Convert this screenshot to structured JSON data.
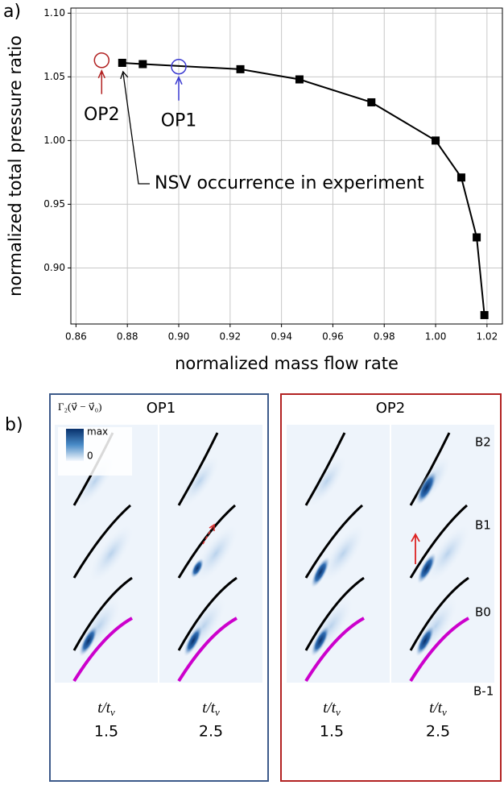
{
  "chart_data": {
    "type": "line",
    "panel_label": "a)",
    "x_label": "normalized mass flow rate",
    "y_label": "normalized total pressure ratio",
    "x": [
      0.878,
      0.886,
      0.924,
      0.947,
      0.975,
      1.0,
      1.01,
      1.016,
      1.019
    ],
    "series": [
      {
        "color": "#000000",
        "values": [
          1.061,
          1.06,
          1.056,
          1.048,
          1.03,
          1.0,
          0.971,
          0.924,
          0.863
        ]
      }
    ],
    "xlim": [
      0.858,
      1.026
    ],
    "ylim": [
      0.856,
      1.104
    ],
    "xticks": [
      0.86,
      0.88,
      {
        "value": 0.9,
        "label": "0.90"
      },
      0.92,
      0.94,
      0.96,
      0.98,
      {
        "value": 1.0,
        "label": "1.00"
      },
      1.02
    ],
    "yticks": [
      {
        "value": 0.9,
        "label": "0.90"
      },
      0.95,
      {
        "value": 1.0,
        "label": "1.00"
      },
      1.05,
      {
        "value": 1.1,
        "label": "1.10"
      }
    ],
    "grid": true,
    "annotations": [
      {
        "text": "OP2",
        "x": 0.87,
        "y": 1.063,
        "color": "#b22222"
      },
      {
        "text": "OP1",
        "x": 0.9,
        "y": 1.058,
        "color": "#3a3ad0"
      }
    ],
    "note": "NSV occurrence in experiment"
  },
  "panel_b": {
    "label": "b)",
    "legend": {
      "formula": "Γ₂(v⃗ − v⃗₀)",
      "max": "max",
      "min": "0"
    },
    "panels": [
      {
        "title": "OP1",
        "columns": [
          {
            "time": "t/t",
            "sub": "v",
            "value": "1.5"
          },
          {
            "time": "t/t",
            "sub": "v",
            "value": "2.5"
          }
        ]
      },
      {
        "title": "OP2",
        "columns": [
          {
            "time": "t/t",
            "sub": "v",
            "value": "1.5"
          },
          {
            "time": "t/t",
            "sub": "v",
            "value": "2.5"
          }
        ],
        "blades": [
          "B2",
          "B1",
          "B0",
          "B-1"
        ]
      }
    ]
  }
}
